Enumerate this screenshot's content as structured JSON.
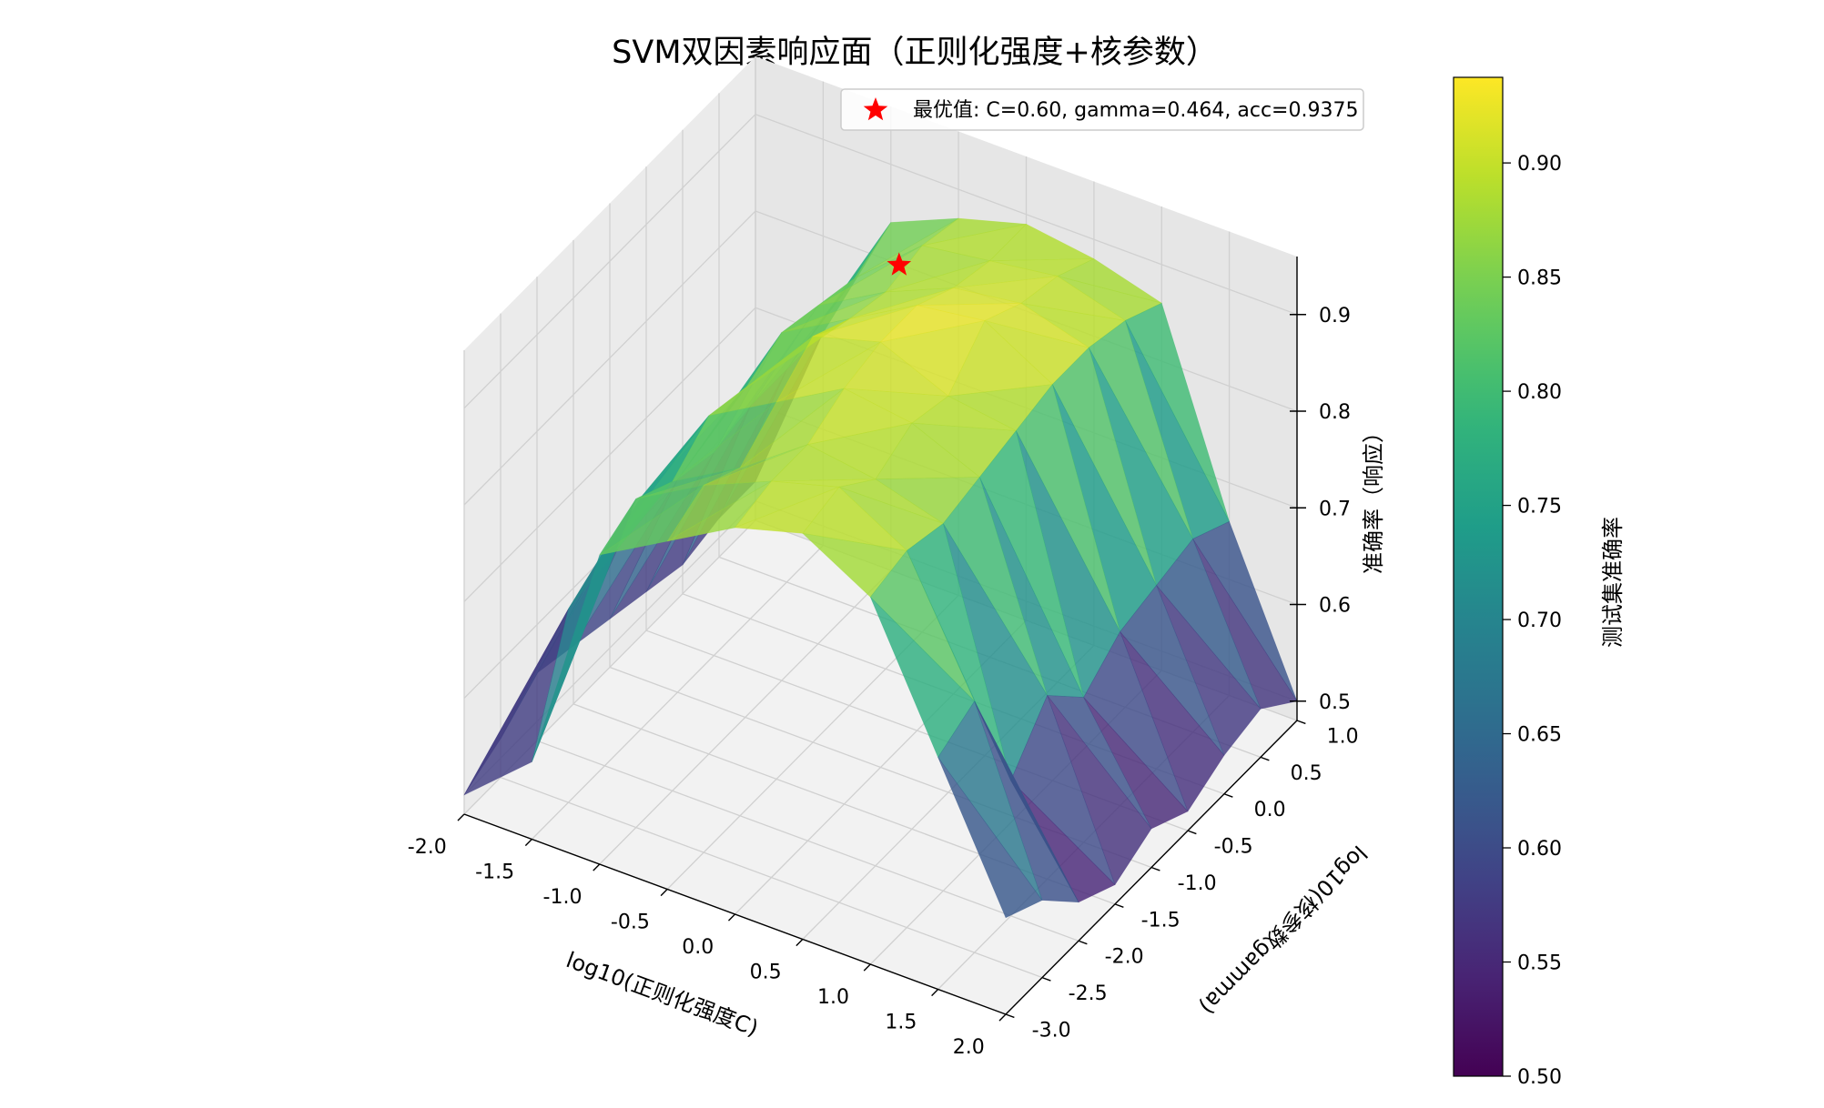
{
  "chart_data": {
    "type": "surface3d",
    "title": "SVM双因素响应面（正则化强度+核参数）",
    "xlabel": "log10(正则化强度C)",
    "ylabel": "log10(核参数gamma)",
    "zlabel": "准确率（响应）",
    "colorbar_label": "测试集准确率",
    "colormap": "viridis",
    "x_ticks": [
      "-2.0",
      "-1.5",
      "-1.0",
      "-0.5",
      "0.0",
      "0.5",
      "1.0",
      "1.5",
      "2.0"
    ],
    "y_ticks": [
      "-3.0",
      "-2.5",
      "-2.0",
      "-1.5",
      "-1.0",
      "-0.5",
      "0.0",
      "0.5",
      "1.0"
    ],
    "z_ticks": [
      "0.5",
      "0.6",
      "0.7",
      "0.8",
      "0.9"
    ],
    "colorbar_ticks": [
      "0.50",
      "0.55",
      "0.60",
      "0.65",
      "0.70",
      "0.75",
      "0.80",
      "0.85",
      "0.90"
    ],
    "xlim": [
      -2.0,
      2.0
    ],
    "ylim": [
      -3.0,
      1.0
    ],
    "zlim": [
      0.48,
      0.96
    ],
    "clim": [
      0.5,
      0.9375
    ],
    "x": [
      -2.0,
      -1.5,
      -1.0,
      -0.5,
      0.0,
      0.5,
      1.0,
      1.5,
      2.0
    ],
    "y": [
      -3.0,
      -2.5,
      -2.0,
      -1.5,
      -1.0,
      -0.5,
      0.0,
      0.5,
      1.0
    ],
    "z": [
      [
        0.5,
        0.56,
        0.8,
        0.84,
        0.88,
        0.9,
        0.86,
        0.72,
        0.58
      ],
      [
        0.52,
        0.68,
        0.82,
        0.86,
        0.89,
        0.91,
        0.87,
        0.74,
        0.56
      ],
      [
        0.55,
        0.7,
        0.8,
        0.84,
        0.89,
        0.88,
        0.86,
        0.62,
        0.52
      ],
      [
        0.54,
        0.72,
        0.83,
        0.87,
        0.91,
        0.9,
        0.87,
        0.67,
        0.5
      ],
      [
        0.53,
        0.7,
        0.82,
        0.9,
        0.92,
        0.89,
        0.88,
        0.63,
        0.52
      ],
      [
        0.52,
        0.69,
        0.84,
        0.88,
        0.92,
        0.93,
        0.89,
        0.66,
        0.5
      ],
      [
        0.51,
        0.7,
        0.83,
        0.87,
        0.9,
        0.91,
        0.89,
        0.67,
        0.52
      ],
      [
        0.52,
        0.7,
        0.82,
        0.88,
        0.89,
        0.9,
        0.88,
        0.68,
        0.53
      ],
      [
        0.52,
        0.7,
        0.84,
        0.87,
        0.89,
        0.88,
        0.86,
        0.66,
        0.5
      ]
    ],
    "best_point": {
      "x": -0.2218,
      "y": -0.3335,
      "z": 0.9375
    },
    "legend": {
      "position": "top-right",
      "label": "最优值: C=0.60, gamma=0.464, acc=0.9375",
      "marker_color": "#ff0000"
    },
    "grid": true
  }
}
